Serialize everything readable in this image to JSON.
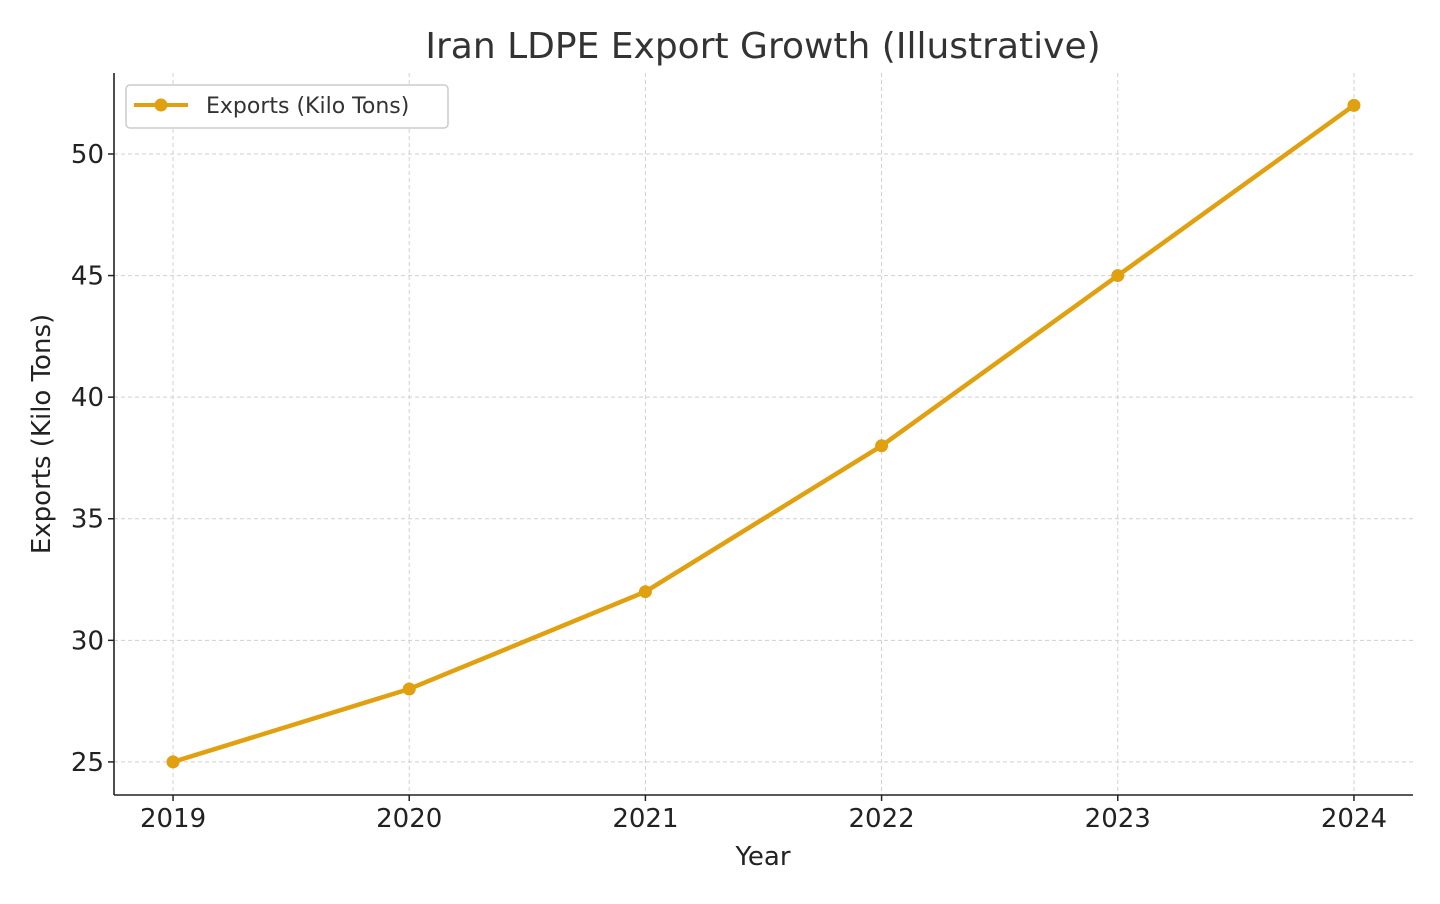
{
  "chart_data": {
    "type": "line",
    "title": "Iran LDPE Export Growth (Illustrative)",
    "xlabel": "Year",
    "ylabel": "Exports (Kilo Tons)",
    "x": [
      2019,
      2020,
      2021,
      2022,
      2023,
      2024
    ],
    "x_tick_labels": [
      "2019",
      "2020",
      "2021",
      "2022",
      "2023",
      "2024"
    ],
    "y_ticks": [
      25,
      30,
      35,
      40,
      45,
      50
    ],
    "y_tick_labels": [
      "25",
      "30",
      "35",
      "40",
      "45",
      "50"
    ],
    "xlim": [
      2018.75,
      2024.25
    ],
    "ylim": [
      23.64,
      53.33
    ],
    "grid": true,
    "legend_position": "top-left",
    "series": [
      {
        "name": "Exports (Kilo Tons)",
        "values": [
          25,
          28,
          32,
          38,
          45,
          52
        ],
        "color": "#E0A010",
        "marker": "circle"
      }
    ]
  }
}
